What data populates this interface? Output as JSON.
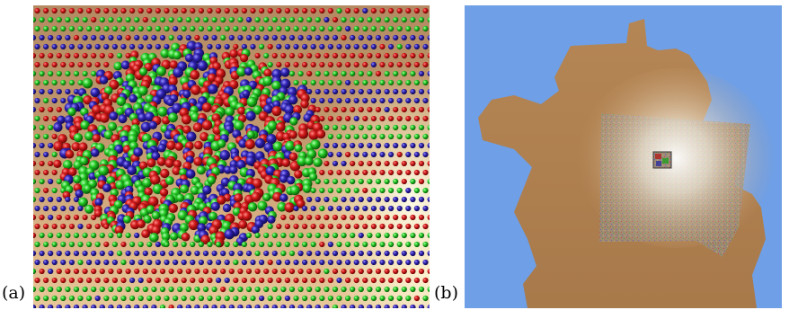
{
  "figure": {
    "panels": [
      {
        "label": "(a)"
      },
      {
        "label": "(b)"
      }
    ]
  },
  "colors": {
    "sphere_red": "#c81414",
    "sphere_green": "#1fc41f",
    "sphere_blue": "#2a1fa8",
    "sky_blue": "#6f9fe6",
    "terrain_tan": "#b8895a"
  }
}
